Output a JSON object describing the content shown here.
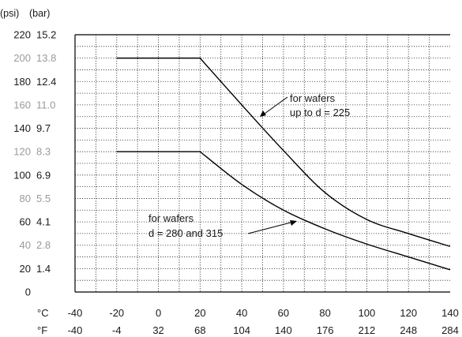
{
  "chart_data": {
    "type": "line",
    "title": "",
    "y_units": {
      "psi": "(psi)",
      "bar": "(bar)"
    },
    "yticks": [
      {
        "psi": "220",
        "bar": "15.2",
        "value": 220,
        "light": false
      },
      {
        "psi": "200",
        "bar": "13.8",
        "value": 200,
        "light": true
      },
      {
        "psi": "180",
        "bar": "12.4",
        "value": 180,
        "light": false
      },
      {
        "psi": "160",
        "bar": "11.0",
        "value": 160,
        "light": true
      },
      {
        "psi": "140",
        "bar": "9.7",
        "value": 140,
        "light": false
      },
      {
        "psi": "120",
        "bar": "8.3",
        "value": 120,
        "light": true
      },
      {
        "psi": "100",
        "bar": "6.9",
        "value": 100,
        "light": false
      },
      {
        "psi": "80",
        "bar": "5.5",
        "value": 80,
        "light": true
      },
      {
        "psi": "60",
        "bar": "4.1",
        "value": 60,
        "light": false
      },
      {
        "psi": "40",
        "bar": "2.8",
        "value": 40,
        "light": true
      },
      {
        "psi": "20",
        "bar": "1.4",
        "value": 20,
        "light": false
      },
      {
        "psi": "0",
        "bar": "",
        "value": 0,
        "light": false
      }
    ],
    "x_unit_c": "°C",
    "x_unit_f": "°F",
    "xticks_c": [
      "-40",
      "-20",
      "0",
      "20",
      "40",
      "60",
      "80",
      "100",
      "120",
      "140"
    ],
    "xticks_f": [
      "-40",
      "-4",
      "32",
      "68",
      "104",
      "140",
      "176",
      "212",
      "248",
      "284"
    ],
    "xlim": [
      -40,
      140
    ],
    "ylim": [
      0,
      220
    ],
    "grid": true,
    "series": [
      {
        "name": "for wafers up to d = 225",
        "x": [
          -20,
          20,
          40,
          60,
          80,
          100,
          120,
          140
        ],
        "y": [
          200,
          200,
          160,
          121,
          85,
          62,
          50,
          39
        ]
      },
      {
        "name": "for wafers d = 280 and 315",
        "x": [
          -20,
          20,
          40,
          60,
          80,
          100,
          120,
          140
        ],
        "y": [
          120,
          120,
          92,
          70,
          54,
          41,
          30,
          19
        ]
      }
    ],
    "annotations": [
      {
        "lines": [
          "for wafers",
          "up to d = 225"
        ]
      },
      {
        "lines": [
          "for wafers",
          "d = 280 and 315"
        ]
      }
    ]
  }
}
